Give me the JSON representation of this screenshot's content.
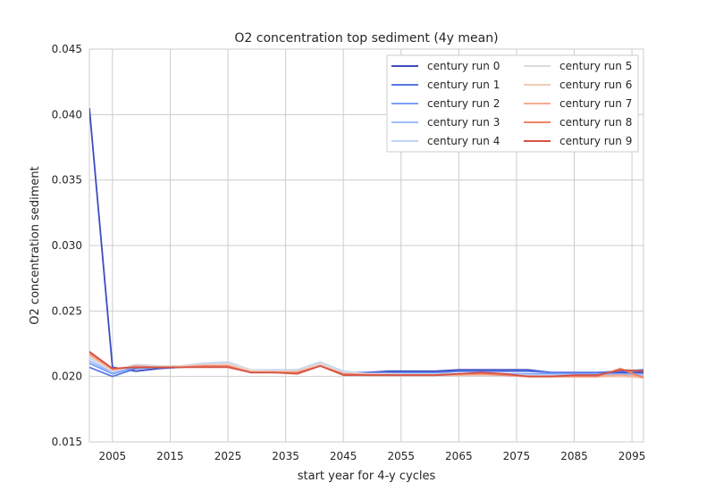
{
  "chart_data": {
    "type": "line",
    "title": "O2 concentration top sediment (4y mean)",
    "xlabel": "start year for 4-y cycles",
    "ylabel": "O2 concentration sediment",
    "xlim": [
      2001,
      2097
    ],
    "ylim": [
      0.015,
      0.045
    ],
    "xticks": [
      2005,
      2015,
      2025,
      2035,
      2045,
      2055,
      2065,
      2075,
      2085,
      2095
    ],
    "yticks": [
      0.015,
      0.02,
      0.025,
      0.03,
      0.035,
      0.04,
      0.045
    ],
    "ytick_labels": [
      "0.015",
      "0.020",
      "0.025",
      "0.030",
      "0.035",
      "0.040",
      "0.045"
    ],
    "grid": true,
    "legend_position": "top-right",
    "x": [
      2001,
      2005,
      2009,
      2013,
      2017,
      2021,
      2025,
      2029,
      2033,
      2037,
      2041,
      2045,
      2049,
      2053,
      2057,
      2061,
      2065,
      2069,
      2073,
      2077,
      2081,
      2085,
      2089,
      2093,
      2097
    ],
    "series": [
      {
        "name": "century run 0",
        "color": "#3b4cc0",
        "values": [
          0.0405,
          0.0207,
          0.0204,
          0.0206,
          0.0207,
          0.0208,
          0.0208,
          0.0203,
          0.0203,
          0.0203,
          0.0209,
          0.0202,
          0.0203,
          0.0204,
          0.0204,
          0.0204,
          0.0205,
          0.0205,
          0.0205,
          0.0205,
          0.0203,
          0.0203,
          0.0203,
          0.0203,
          0.0203
        ]
      },
      {
        "name": "century run 1",
        "color": "#5977e3",
        "values": [
          0.0207,
          0.02,
          0.0206,
          0.0207,
          0.0208,
          0.0208,
          0.0208,
          0.0204,
          0.0203,
          0.0204,
          0.0209,
          0.0203,
          0.0203,
          0.0203,
          0.0203,
          0.0203,
          0.0204,
          0.0204,
          0.0204,
          0.0204,
          0.0203,
          0.0203,
          0.0203,
          0.0204,
          0.0205
        ]
      },
      {
        "name": "century run 2",
        "color": "#7b9ff9",
        "values": [
          0.021,
          0.0202,
          0.0207,
          0.0207,
          0.0208,
          0.0209,
          0.0209,
          0.0204,
          0.0204,
          0.0204,
          0.021,
          0.0203,
          0.0202,
          0.0202,
          0.0202,
          0.0202,
          0.0202,
          0.0202,
          0.0202,
          0.0202,
          0.0202,
          0.0202,
          0.0202,
          0.0202,
          0.0202
        ]
      },
      {
        "name": "century run 3",
        "color": "#9ebeff",
        "values": [
          0.0212,
          0.0203,
          0.0208,
          0.0208,
          0.0208,
          0.021,
          0.021,
          0.0205,
          0.0204,
          0.0205,
          0.021,
          0.0203,
          0.0202,
          0.0202,
          0.0202,
          0.0202,
          0.0202,
          0.0202,
          0.0202,
          0.0201,
          0.0201,
          0.0201,
          0.0201,
          0.0201,
          0.0201
        ]
      },
      {
        "name": "century run 4",
        "color": "#c0d4f5",
        "values": [
          0.0214,
          0.0204,
          0.0209,
          0.0208,
          0.0208,
          0.021,
          0.0211,
          0.0205,
          0.0205,
          0.0205,
          0.0211,
          0.0204,
          0.0202,
          0.0202,
          0.0202,
          0.0202,
          0.0202,
          0.0202,
          0.0201,
          0.0201,
          0.0201,
          0.0201,
          0.0201,
          0.02,
          0.02
        ]
      },
      {
        "name": "century run 5",
        "color": "#dddcdc",
        "values": [
          0.0215,
          0.0204,
          0.0208,
          0.0208,
          0.0208,
          0.0209,
          0.021,
          0.0205,
          0.0204,
          0.0204,
          0.021,
          0.0203,
          0.0202,
          0.0202,
          0.0201,
          0.0201,
          0.0201,
          0.0201,
          0.0201,
          0.02,
          0.02,
          0.02,
          0.02,
          0.02,
          0.02
        ]
      },
      {
        "name": "century run 6",
        "color": "#f2cbb7",
        "values": [
          0.0216,
          0.0205,
          0.0208,
          0.0207,
          0.0208,
          0.0209,
          0.0209,
          0.0204,
          0.0204,
          0.0204,
          0.0209,
          0.0202,
          0.0202,
          0.0201,
          0.0201,
          0.0201,
          0.0201,
          0.0201,
          0.0201,
          0.02,
          0.02,
          0.02,
          0.02,
          0.02,
          0.0199
        ]
      },
      {
        "name": "century run 7",
        "color": "#f7ac8e",
        "values": [
          0.0217,
          0.0205,
          0.0208,
          0.0207,
          0.0207,
          0.0208,
          0.0208,
          0.0203,
          0.0203,
          0.0203,
          0.0208,
          0.0202,
          0.0201,
          0.0201,
          0.0201,
          0.0201,
          0.0201,
          0.0202,
          0.0201,
          0.02,
          0.02,
          0.02,
          0.02,
          0.0201,
          0.02
        ]
      },
      {
        "name": "century run 8",
        "color": "#ee8468",
        "values": [
          0.0218,
          0.0206,
          0.0207,
          0.0207,
          0.0207,
          0.0208,
          0.0208,
          0.0203,
          0.0203,
          0.0203,
          0.0208,
          0.0202,
          0.0201,
          0.0201,
          0.0201,
          0.0201,
          0.0202,
          0.0202,
          0.0201,
          0.02,
          0.02,
          0.02,
          0.02,
          0.0206,
          0.0199
        ]
      },
      {
        "name": "century run 9",
        "color": "#d65244",
        "values": [
          0.0219,
          0.0206,
          0.0207,
          0.0207,
          0.0207,
          0.0207,
          0.0207,
          0.0203,
          0.0203,
          0.0202,
          0.0208,
          0.0201,
          0.0201,
          0.0201,
          0.0201,
          0.0201,
          0.0202,
          0.0203,
          0.0202,
          0.02,
          0.02,
          0.0201,
          0.0201,
          0.0205,
          0.0204
        ]
      }
    ]
  }
}
